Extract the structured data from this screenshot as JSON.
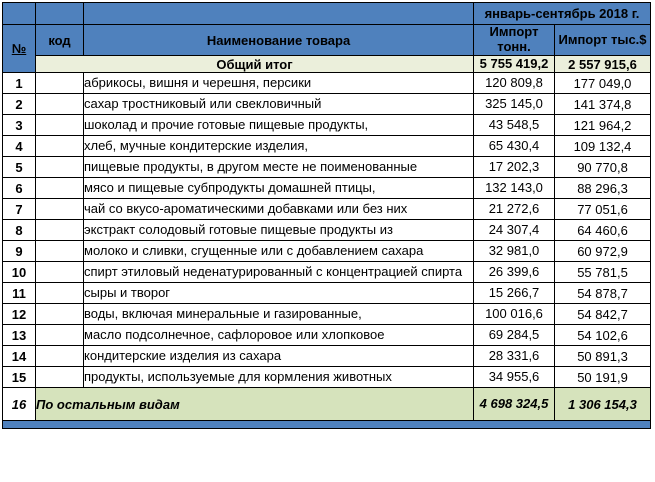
{
  "table": {
    "period_header": "январь-сентябрь 2018 г.",
    "columns": {
      "num": "№",
      "code": "код",
      "name": "Наименование товара",
      "import_tons": "Импорт тонн.",
      "import_usd": "Импорт тыс.$"
    },
    "total_row": {
      "label": "Общий итог",
      "tons": "5 755 419,2",
      "usd": "2 557 915,6"
    },
    "rows": [
      {
        "num": "1",
        "code": "",
        "name": "абрикосы, вишня и черешня, персики",
        "tons": "120 809,8",
        "usd": "177 049,0"
      },
      {
        "num": "2",
        "code": "",
        "name": "сахар тростниковый или свекловичный",
        "tons": "325 145,0",
        "usd": "141 374,8"
      },
      {
        "num": "3",
        "code": "",
        "name": "шоколад и прочие готовые пищевые продукты,",
        "tons": "43 548,5",
        "usd": "121 964,2"
      },
      {
        "num": "4",
        "code": "",
        "name": "хлеб, мучные кондитерские изделия,",
        "tons": "65 430,4",
        "usd": "109 132,4"
      },
      {
        "num": "5",
        "code": "",
        "name": "пищевые продукты, в другом месте не поименованные",
        "tons": "17 202,3",
        "usd": "90 770,8"
      },
      {
        "num": "6",
        "code": "",
        "name": "мясо и пищевые субпродукты домашней птицы,",
        "tons": "132 143,0",
        "usd": "88 296,3"
      },
      {
        "num": "7",
        "code": "",
        "name": "чай со вкусо-ароматическими добавками или без них",
        "tons": "21 272,6",
        "usd": "77 051,6"
      },
      {
        "num": "8",
        "code": "",
        "name": "экстракт солодовый готовые пищевые продукты из",
        "tons": "24 307,4",
        "usd": "64 460,6"
      },
      {
        "num": "9",
        "code": "",
        "name": "молоко и сливки, сгущенные или с добавлением сахара",
        "tons": "32 981,0",
        "usd": "60 972,9"
      },
      {
        "num": "10",
        "code": "",
        "name": "спирт этиловый неденатурированный с концентрацией спирта",
        "tons": "26 399,6",
        "usd": "55 781,5"
      },
      {
        "num": "11",
        "code": "",
        "name": "сыры и творог",
        "tons": "15 266,7",
        "usd": "54 878,7"
      },
      {
        "num": "12",
        "code": "",
        "name": "воды, включая минеральные и газированные,",
        "tons": "100 016,6",
        "usd": "54 842,7"
      },
      {
        "num": "13",
        "code": "",
        "name": "масло подсолнечное, сафлоровое или хлопковое",
        "tons": "69 284,5",
        "usd": "54 102,6"
      },
      {
        "num": "14",
        "code": "",
        "name": "кондитерские изделия из сахара",
        "tons": "28 331,6",
        "usd": "50 891,3"
      },
      {
        "num": "15",
        "code": "",
        "name": "продукты, используемые для кормления животных",
        "tons": "34 955,6",
        "usd": "50 191,9"
      }
    ],
    "rest_row": {
      "num": "16",
      "label": "По остальным видам",
      "tons": "4 698 324,5",
      "usd": "1 306 154,3"
    }
  },
  "colors": {
    "header_blue": "#4F81BD",
    "header_text_navy": "#17375D",
    "header_text_dark_red": "#632423",
    "total_row_bg": "#EBEFDB",
    "rest_row_bg": "#D6E3BC",
    "border": "#000000"
  }
}
